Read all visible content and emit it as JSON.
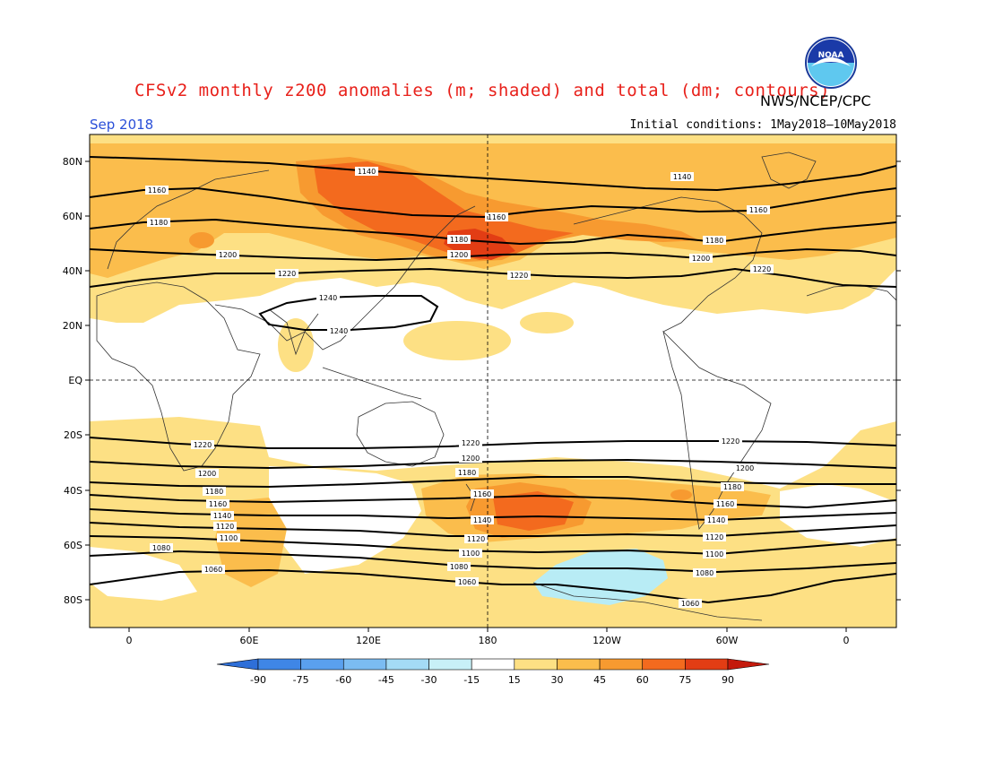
{
  "title": "CFSv2 monthly z200 anomalies (m; shaded) and total (dm; contours)",
  "agency": "NWS/NCEP/CPC",
  "logo_text": "NOAA",
  "month": "Sep 2018",
  "initial_conditions": "Initial conditions:  1May2018—10May2018",
  "axes": {
    "lat_labels": [
      "80N",
      "60N",
      "40N",
      "20N",
      "EQ",
      "20S",
      "40S",
      "60S",
      "80S"
    ],
    "lon_labels": [
      "0",
      "60E",
      "120E",
      "180",
      "120W",
      "60W",
      "0"
    ]
  },
  "colorbar": {
    "ticks": [
      "-90",
      "-75",
      "-60",
      "-45",
      "-30",
      "-15",
      "15",
      "30",
      "45",
      "60",
      "75",
      "90"
    ],
    "colors": [
      "#2e6fd8",
      "#3f86e6",
      "#5aa0ee",
      "#7bbcf2",
      "#a4dbf5",
      "#c8f0f7",
      "#ffffff",
      "#fde084",
      "#fbbd4c",
      "#f79a30",
      "#f36a1e",
      "#e23d14",
      "#c41a0c"
    ]
  },
  "contour_labels_nh": [
    "1140",
    "1160",
    "1180",
    "1200",
    "1220",
    "1240"
  ],
  "contour_labels_sh": [
    "1220",
    "1200",
    "1180",
    "1160",
    "1140",
    "1120",
    "1100",
    "1080",
    "1060"
  ]
}
